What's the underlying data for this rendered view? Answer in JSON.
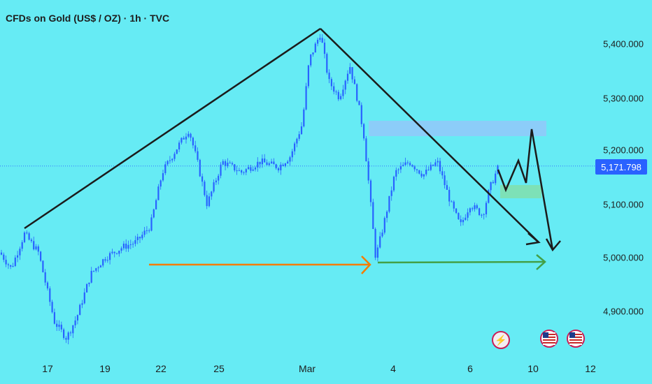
{
  "chart": {
    "title": "CFDs on Gold (US$ / OZ) · 1h · TVC",
    "current_price_label": "5,171.798",
    "colors": {
      "background": "#66ebf4",
      "candle": "#2962ff",
      "trendline": "#1b1b1b",
      "orange_arrow": "#f57c00",
      "green_arrow": "#43a047",
      "resistance_zone": "#90caf9",
      "support_zone": "#80e0b0",
      "price_badge": "#2962ff"
    },
    "y_axis_labels": [
      "5,400.000",
      "5,300.000",
      "5,200.000",
      "5,100.000",
      "5,000.000",
      "4,900.000"
    ],
    "x_axis_labels": [
      "17",
      "19",
      "22",
      "25",
      "Mar",
      "4",
      "6",
      "10",
      "12"
    ],
    "event_icons": [
      "lightning-icon",
      "us-flag-icon",
      "us-flag-icon"
    ]
  },
  "chart_data": {
    "type": "candlestick",
    "title": "CFDs on Gold (US$ / OZ) · 1h · TVC",
    "y_range": [
      4840,
      5440
    ],
    "y_ticks": [
      5400,
      5300,
      5200,
      5100,
      5000,
      4900
    ],
    "x_ticks": [
      "17",
      "19",
      "22",
      "25",
      "Mar",
      "4",
      "6",
      "10",
      "12"
    ],
    "last_price": 5171.798,
    "price_path": [
      [
        0,
        5010
      ],
      [
        16,
        4980
      ],
      [
        35,
        5045
      ],
      [
        55,
        5010
      ],
      [
        78,
        4880
      ],
      [
        95,
        4850
      ],
      [
        110,
        4890
      ],
      [
        130,
        4970
      ],
      [
        150,
        5000
      ],
      [
        175,
        5020
      ],
      [
        195,
        5030
      ],
      [
        215,
        5060
      ],
      [
        232,
        5160
      ],
      [
        255,
        5210
      ],
      [
        270,
        5240
      ],
      [
        282,
        5180
      ],
      [
        296,
        5100
      ],
      [
        318,
        5180
      ],
      [
        345,
        5160
      ],
      [
        372,
        5180
      ],
      [
        398,
        5170
      ],
      [
        415,
        5190
      ],
      [
        432,
        5250
      ],
      [
        442,
        5370
      ],
      [
        458,
        5420
      ],
      [
        470,
        5330
      ],
      [
        485,
        5300
      ],
      [
        500,
        5360
      ],
      [
        512,
        5290
      ],
      [
        520,
        5230
      ],
      [
        527,
        5140
      ],
      [
        537,
        5000
      ],
      [
        548,
        5060
      ],
      [
        565,
        5160
      ],
      [
        585,
        5180
      ],
      [
        605,
        5155
      ],
      [
        625,
        5180
      ],
      [
        645,
        5100
      ],
      [
        658,
        5060
      ],
      [
        672,
        5100
      ],
      [
        690,
        5080
      ],
      [
        700,
        5130
      ],
      [
        713,
        5172
      ]
    ],
    "annotations": [
      {
        "type": "trendline",
        "points": [
          [
            2,
            5060
          ],
          [
            30,
            5430
          ]
        ]
      },
      {
        "type": "trendline",
        "points": [
          [
            30,
            5430
          ],
          [
            70,
            5020
          ]
        ]
      },
      {
        "type": "zone",
        "label": "resistance",
        "low": 5222,
        "high": 5250
      },
      {
        "type": "zone",
        "label": "support",
        "low": 5112,
        "high": 5138
      },
      {
        "type": "arrow",
        "label": "orange",
        "level": 4990
      },
      {
        "type": "arrow",
        "label": "green",
        "level": 4994
      },
      {
        "type": "projection",
        "points": [
          5172,
          5120,
          5190,
          5140,
          5240,
          5012
        ]
      }
    ]
  }
}
